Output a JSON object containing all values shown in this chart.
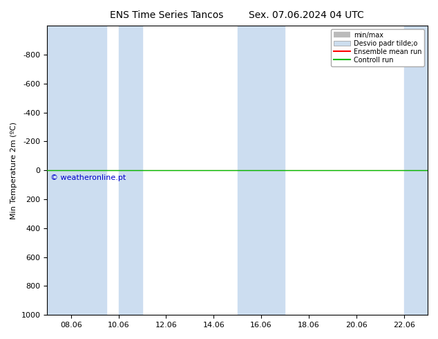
{
  "title": "ENS Time Series Tancos",
  "title2": "Sex. 07.06.2024 04 UTC",
  "ylabel": "Min Temperature 2m (ºC)",
  "watermark": "© weatheronline.pt",
  "xtick_labels": [
    "08.06",
    "10.06",
    "12.06",
    "14.06",
    "16.06",
    "18.06",
    "20.06",
    "22.06"
  ],
  "xtick_positions": [
    1,
    3,
    5,
    7,
    9,
    11,
    13,
    15
  ],
  "ylim_bottom": 1000,
  "ylim_top": -1000,
  "yticks": [
    -800,
    -600,
    -400,
    -200,
    0,
    200,
    400,
    600,
    800,
    1000
  ],
  "xlim": [
    0,
    16
  ],
  "background_color": "#ffffff",
  "plot_bg_color": "#ffffff",
  "shaded_band_color": "#ccddf0",
  "shaded_x_ranges": [
    [
      0.0,
      2.5
    ],
    [
      3.0,
      4.0
    ],
    [
      8.0,
      10.0
    ],
    [
      15.0,
      16.0
    ]
  ],
  "control_run_y": 0.0,
  "ensemble_mean_y": 0.0,
  "control_run_color": "#00bb00",
  "ensemble_mean_color": "#ff0000",
  "minmax_fill_color": "#bbbbbb",
  "legend_labels": [
    "min/max",
    "Desvio padr tilde;o",
    "Ensemble mean run",
    "Controll run"
  ],
  "legend_colors_fill": [
    "#bbbbbb",
    "#ccddee",
    "#ff0000",
    "#00bb00"
  ],
  "watermark_color": "#0000cc",
  "title_fontsize": 10,
  "tick_fontsize": 8,
  "ylabel_fontsize": 8,
  "legend_fontsize": 7,
  "watermark_fontsize": 8
}
